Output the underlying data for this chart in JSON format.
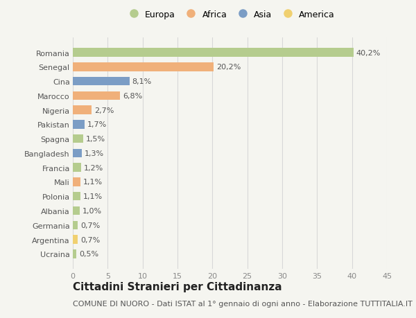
{
  "categories": [
    "Ucraina",
    "Argentina",
    "Germania",
    "Albania",
    "Polonia",
    "Mali",
    "Francia",
    "Bangladesh",
    "Spagna",
    "Pakistan",
    "Nigeria",
    "Marocco",
    "Cina",
    "Senegal",
    "Romania"
  ],
  "values": [
    0.5,
    0.7,
    0.7,
    1.0,
    1.1,
    1.1,
    1.2,
    1.3,
    1.5,
    1.7,
    2.7,
    6.8,
    8.1,
    20.2,
    40.2
  ],
  "labels": [
    "0,5%",
    "0,7%",
    "0,7%",
    "1,0%",
    "1,1%",
    "1,1%",
    "1,2%",
    "1,3%",
    "1,5%",
    "1,7%",
    "2,7%",
    "6,8%",
    "8,1%",
    "20,2%",
    "40,2%"
  ],
  "continents": [
    "Europa",
    "America",
    "Europa",
    "Europa",
    "Europa",
    "Africa",
    "Europa",
    "Asia",
    "Europa",
    "Asia",
    "Africa",
    "Africa",
    "Asia",
    "Africa",
    "Europa"
  ],
  "continent_colors": {
    "Europa": "#b5cc8e",
    "Africa": "#f0b07a",
    "Asia": "#7b9dc5",
    "America": "#f0d070"
  },
  "legend_order": [
    "Europa",
    "Africa",
    "Asia",
    "America"
  ],
  "legend_colors": [
    "#b5cc8e",
    "#f0b07a",
    "#7b9dc5",
    "#f0d070"
  ],
  "xlim": [
    0,
    45
  ],
  "xticks": [
    0,
    5,
    10,
    15,
    20,
    25,
    30,
    35,
    40,
    45
  ],
  "title": "Cittadini Stranieri per Cittadinanza",
  "subtitle": "COMUNE DI NUORO - Dati ISTAT al 1° gennaio di ogni anno - Elaborazione TUTTITALIA.IT",
  "background_color": "#f5f5f0",
  "bar_height": 0.6,
  "label_fontsize": 8,
  "tick_fontsize": 8,
  "title_fontsize": 11,
  "subtitle_fontsize": 8
}
